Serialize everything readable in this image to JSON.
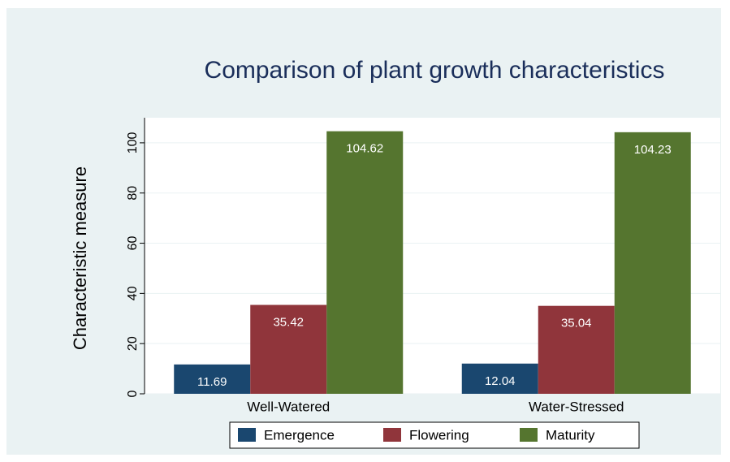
{
  "chart_data": {
    "type": "bar",
    "title": "Comparison of plant growth characteristics",
    "ylabel": "Characteristic measure",
    "categories": [
      "Well-Watered",
      "Water-Stressed"
    ],
    "series": [
      {
        "name": "Emergence",
        "color": "#1a476f",
        "values": [
          11.69,
          12.04
        ]
      },
      {
        "name": "Flowering",
        "color": "#90353b",
        "values": [
          35.42,
          35.04
        ]
      },
      {
        "name": "Maturity",
        "color": "#55752f",
        "values": [
          104.62,
          104.23
        ]
      }
    ],
    "ylim": [
      0,
      110
    ],
    "yticks": [
      0,
      20,
      40,
      60,
      80,
      100
    ],
    "grid": true,
    "legend": "bottom"
  }
}
